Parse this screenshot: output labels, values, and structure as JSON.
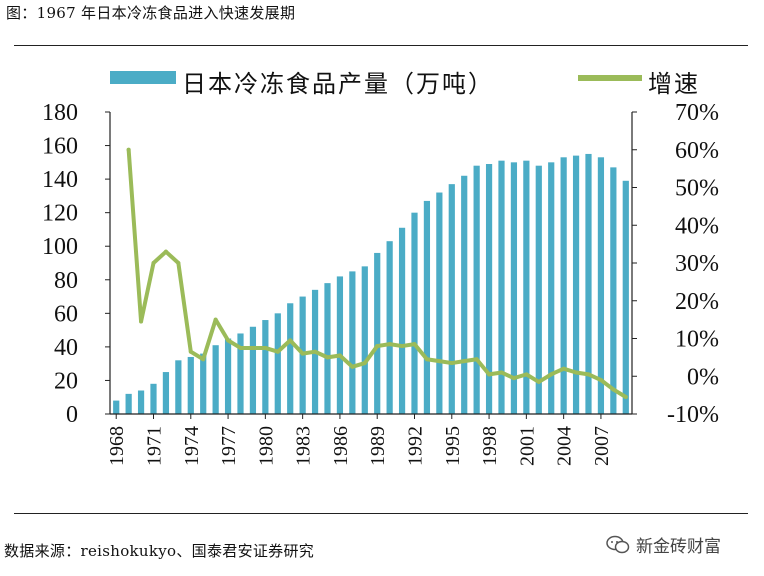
{
  "figure": {
    "title": "图：1967 年日本冷冻食品进入快速发展期",
    "source": "数据来源：reishokukyo、国泰君安证券研究",
    "watermark": "新金砖财富"
  },
  "colors": {
    "bar": "#4bacc6",
    "line": "#9bbb59",
    "axis": "#222222",
    "text": "#111111"
  },
  "chart_data": {
    "type": "bar",
    "secondary_type": "line",
    "title": "",
    "xlabel": "",
    "ylabel": "",
    "ylim": [
      0,
      180
    ],
    "y2lim": [
      -10,
      70
    ],
    "legend": [
      "日本冷冻食品产量（万吨）",
      "增速"
    ],
    "legend_position": "top",
    "y_ticks": [
      "0",
      "20",
      "40",
      "60",
      "80",
      "100",
      "120",
      "140",
      "160",
      "180"
    ],
    "y2_ticks": [
      "-10%",
      "0%",
      "10%",
      "20%",
      "30%",
      "40%",
      "50%",
      "60%",
      "70%"
    ],
    "x_tick_labels": [
      "1968",
      "1971",
      "1974",
      "1977",
      "1980",
      "1983",
      "1986",
      "1989",
      "1992",
      "1995",
      "1998",
      "2001",
      "2004",
      "2007"
    ],
    "categories": [
      "1968",
      "1969",
      "1970",
      "1971",
      "1972",
      "1973",
      "1974",
      "1975",
      "1976",
      "1977",
      "1978",
      "1979",
      "1980",
      "1981",
      "1982",
      "1983",
      "1984",
      "1985",
      "1986",
      "1987",
      "1988",
      "1989",
      "1990",
      "1991",
      "1992",
      "1993",
      "1994",
      "1995",
      "1996",
      "1997",
      "1998",
      "1999",
      "2000",
      "2001",
      "2002",
      "2003",
      "2004",
      "2005",
      "2006",
      "2007",
      "2008",
      "2009"
    ],
    "series": [
      {
        "name": "日本冷冻食品产量（万吨）",
        "axis": "left",
        "values": [
          8,
          12,
          14,
          18,
          25,
          32,
          34,
          36,
          41,
          45,
          48,
          52,
          56,
          60,
          66,
          70,
          74,
          78,
          82,
          85,
          88,
          96,
          103,
          111,
          120,
          127,
          132,
          137,
          142,
          148,
          149,
          151,
          150,
          151,
          148,
          150,
          153,
          154,
          155,
          153,
          147,
          139
        ]
      },
      {
        "name": "增速",
        "axis": "right",
        "values": [
          null,
          60,
          14.5,
          30,
          33,
          30,
          6.5,
          4.5,
          15,
          9.5,
          7.5,
          7.5,
          7.5,
          6.5,
          9.5,
          6,
          6.5,
          5,
          5.5,
          2.5,
          3.5,
          8,
          8.5,
          8,
          8.5,
          4.5,
          4,
          3.5,
          4,
          4.5,
          0.5,
          1,
          -0.5,
          0.5,
          -1.5,
          0.5,
          2,
          1,
          0.5,
          -1,
          -3.5,
          -5.5
        ]
      }
    ]
  }
}
